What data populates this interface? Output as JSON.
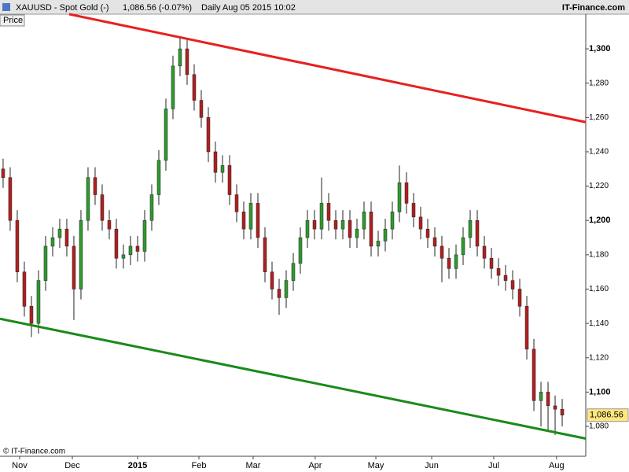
{
  "header": {
    "symbol": "XAUUSD - Spot Gold (-)",
    "quote": "1,086.56 (-0.07%)",
    "period": "Daily  Aug 05 2015 10:02",
    "brand": "IT-Finance.com"
  },
  "footer": "© IT-Finance.com",
  "chart_data": {
    "type": "candlestick",
    "label": "Price",
    "ylim": [
      1062.6,
      1320.2
    ],
    "yticks": [
      {
        "value": 1080,
        "label": "1,080"
      },
      {
        "value": 1100,
        "label": "1,100",
        "major": true
      },
      {
        "value": 1120,
        "label": "1,120"
      },
      {
        "value": 1140,
        "label": "1,140"
      },
      {
        "value": 1160,
        "label": "1,160"
      },
      {
        "value": 1180,
        "label": "1,180"
      },
      {
        "value": 1200,
        "label": "1,200",
        "major": true
      },
      {
        "value": 1220,
        "label": "1,220"
      },
      {
        "value": 1240,
        "label": "1,240"
      },
      {
        "value": 1260,
        "label": "1,260"
      },
      {
        "value": 1280,
        "label": "1,280"
      },
      {
        "value": 1300,
        "label": "1,300",
        "major": true
      }
    ],
    "xlim": [
      -0.44,
      82.33
    ],
    "xticks": [
      {
        "value": 2.33,
        "label": "Nov"
      },
      {
        "value": 9.78,
        "label": "Dec"
      },
      {
        "value": 19,
        "label": "2015",
        "major": true
      },
      {
        "value": 27.67,
        "label": "Feb"
      },
      {
        "value": 35.33,
        "label": "Mar"
      },
      {
        "value": 44.1,
        "label": "Apr"
      },
      {
        "value": 52.67,
        "label": "May"
      },
      {
        "value": 60.56,
        "label": "Jun"
      },
      {
        "value": 69.33,
        "label": "Jul"
      },
      {
        "value": 78.2,
        "label": "Aug"
      }
    ],
    "up_color": "#2e9a2e",
    "down_color": "#b02020",
    "open": [
      1230,
      1225,
      1200,
      1170,
      1150,
      1140,
      1165,
      1185,
      1190,
      1195,
      1185,
      1160,
      1200,
      1225,
      1215,
      1200,
      1195,
      1178,
      1180,
      1185,
      1182,
      1200,
      1215,
      1235,
      1265,
      1290,
      1300,
      1285,
      1270,
      1260,
      1240,
      1228,
      1232,
      1215,
      1205,
      1195,
      1210,
      1190,
      1170,
      1160,
      1155,
      1165,
      1175,
      1190,
      1200,
      1195,
      1210,
      1200,
      1195,
      1200,
      1190,
      1195,
      1205,
      1185,
      1188,
      1195,
      1205,
      1222,
      1210,
      1202,
      1195,
      1190,
      1185,
      1178,
      1172,
      1180,
      1190,
      1200,
      1185,
      1178,
      1172,
      1168,
      1165,
      1160,
      1150,
      1125,
      1095,
      1100,
      1092,
      1090
    ],
    "high": [
      1236,
      1231,
      1206,
      1176,
      1156,
      1171,
      1191,
      1196,
      1201,
      1201,
      1191,
      1206,
      1231,
      1231,
      1221,
      1206,
      1201,
      1186,
      1191,
      1191,
      1206,
      1221,
      1241,
      1271,
      1296,
      1307,
      1306,
      1291,
      1276,
      1266,
      1246,
      1238,
      1238,
      1221,
      1211,
      1216,
      1216,
      1196,
      1176,
      1166,
      1171,
      1181,
      1196,
      1206,
      1206,
      1225,
      1216,
      1206,
      1206,
      1206,
      1201,
      1211,
      1211,
      1194,
      1201,
      1211,
      1232,
      1228,
      1216,
      1208,
      1201,
      1196,
      1191,
      1184,
      1186,
      1196,
      1206,
      1206,
      1191,
      1184,
      1178,
      1174,
      1171,
      1166,
      1156,
      1131,
      1106,
      1106,
      1098,
      1096
    ],
    "low": [
      1219,
      1194,
      1164,
      1144,
      1132,
      1134,
      1159,
      1179,
      1184,
      1179,
      1142,
      1154,
      1194,
      1209,
      1194,
      1189,
      1172,
      1172,
      1174,
      1176,
      1176,
      1194,
      1209,
      1229,
      1259,
      1284,
      1279,
      1264,
      1254,
      1234,
      1222,
      1222,
      1209,
      1199,
      1189,
      1189,
      1184,
      1164,
      1154,
      1145,
      1149,
      1159,
      1169,
      1184,
      1189,
      1189,
      1194,
      1189,
      1189,
      1184,
      1184,
      1189,
      1179,
      1179,
      1182,
      1189,
      1199,
      1204,
      1196,
      1189,
      1184,
      1179,
      1164,
      1166,
      1166,
      1174,
      1184,
      1179,
      1172,
      1166,
      1162,
      1159,
      1154,
      1144,
      1119,
      1089,
      1080,
      1078,
      1075,
      1080
    ],
    "close": [
      1225,
      1200,
      1170,
      1150,
      1140,
      1165,
      1185,
      1190,
      1195,
      1185,
      1160,
      1200,
      1225,
      1215,
      1200,
      1195,
      1178,
      1180,
      1185,
      1182,
      1200,
      1215,
      1235,
      1265,
      1290,
      1300,
      1285,
      1270,
      1260,
      1240,
      1228,
      1232,
      1215,
      1205,
      1195,
      1210,
      1190,
      1170,
      1160,
      1155,
      1165,
      1175,
      1190,
      1200,
      1195,
      1210,
      1200,
      1195,
      1200,
      1190,
      1195,
      1205,
      1185,
      1188,
      1195,
      1205,
      1222,
      1210,
      1202,
      1195,
      1190,
      1185,
      1178,
      1172,
      1180,
      1190,
      1200,
      1185,
      1178,
      1172,
      1168,
      1165,
      1160,
      1150,
      1125,
      1095,
      1100,
      1092,
      1090,
      1086.56
    ],
    "last_price": {
      "value": 1086.56,
      "label": "1,086.56"
    },
    "trendlines": [
      {
        "color": "#e82020",
        "x": [
          9.33,
          82.33
        ],
        "y": [
          1320.2,
          1257.3
        ]
      },
      {
        "color": "#1a8a1a",
        "x": [
          -0.44,
          82.33
        ],
        "y": [
          1142.7,
          1072.9
        ]
      }
    ]
  }
}
